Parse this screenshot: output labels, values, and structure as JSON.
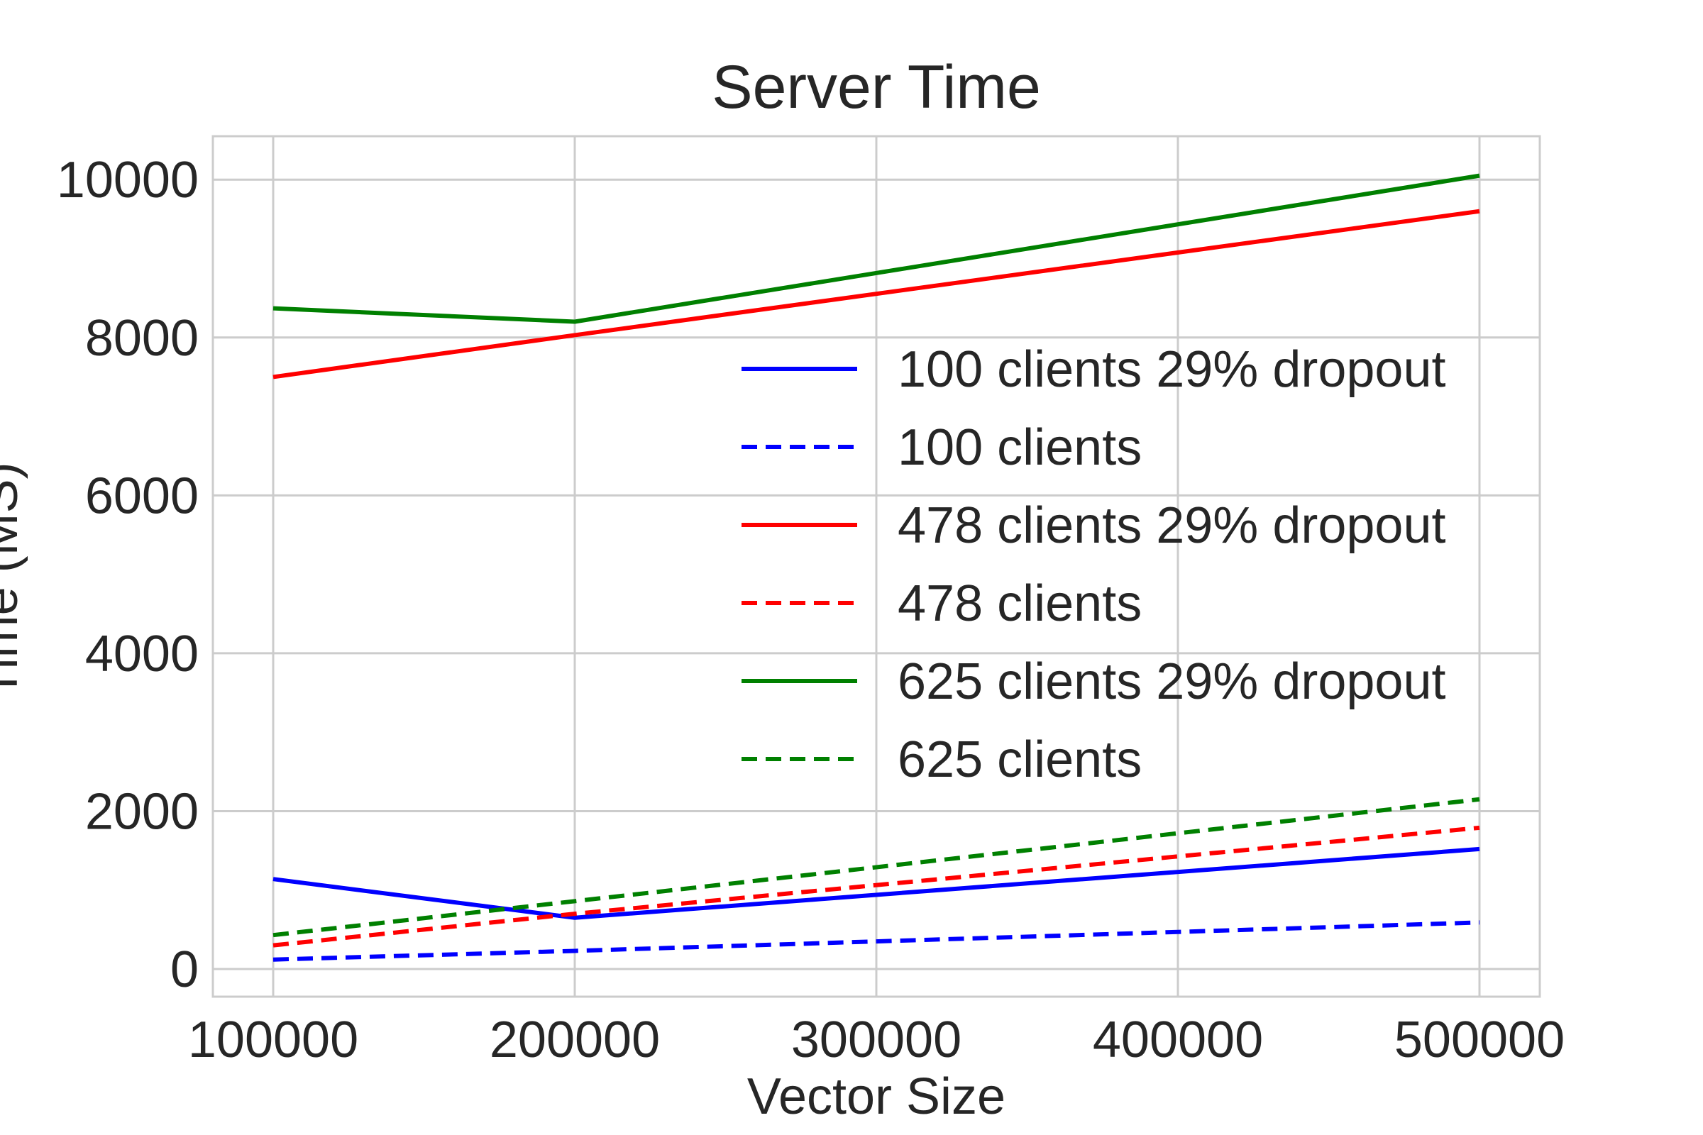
{
  "chart_data": {
    "type": "line",
    "title": "Server Time",
    "xlabel": "Vector Size",
    "ylabel": "Time (MS)",
    "xlim": [
      80000,
      520000
    ],
    "ylim": [
      -350,
      10550
    ],
    "x_ticks": [
      100000,
      200000,
      300000,
      400000,
      500000
    ],
    "x_tick_labels": [
      "100000",
      "200000",
      "300000",
      "400000",
      "500000"
    ],
    "y_ticks": [
      0,
      2000,
      4000,
      6000,
      8000,
      10000
    ],
    "y_tick_labels": [
      "0",
      "2000",
      "4000",
      "6000",
      "8000",
      "10000"
    ],
    "grid": true,
    "legend_position": "center-right",
    "x": [
      100000,
      200000,
      500000
    ],
    "series": [
      {
        "name": "100 clients 29% dropout",
        "color": "#0000ff",
        "dash": "solid",
        "values": [
          1140,
          650,
          1520
        ]
      },
      {
        "name": "100 clients",
        "color": "#0000ff",
        "dash": "dashed",
        "values": [
          120,
          230,
          590
        ]
      },
      {
        "name": "478 clients 29% dropout",
        "color": "#ff0000",
        "dash": "solid",
        "values": [
          7500,
          8030,
          9600
        ]
      },
      {
        "name": "478 clients",
        "color": "#ff0000",
        "dash": "dashed",
        "values": [
          300,
          700,
          1790
        ]
      },
      {
        "name": "625 clients 29% dropout",
        "color": "#008000",
        "dash": "solid",
        "values": [
          8370,
          8200,
          10050
        ]
      },
      {
        "name": "625 clients",
        "color": "#008000",
        "dash": "dashed",
        "values": [
          430,
          860,
          2150
        ]
      }
    ]
  }
}
